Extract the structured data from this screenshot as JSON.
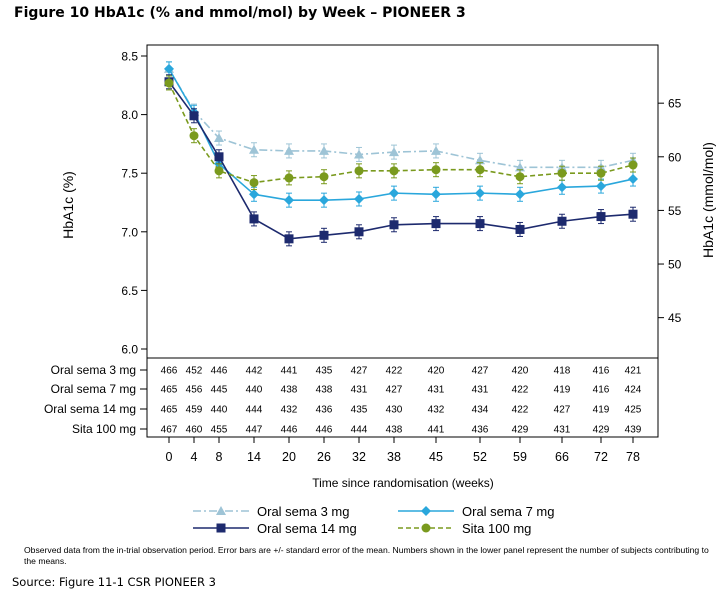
{
  "figure_title": "Figure 10 HbA1c (% and mmol/mol) by Week – PIONEER 3",
  "footnote": "Observed data from the in-trial observation period. Error bars are +/- standard error of the mean. Numbers shown in the lower panel represent the number of subjects contributing to the means.",
  "source": "Source: Figure 11-1 CSR PIONEER 3",
  "colors": {
    "oral_sema_3mg": "#9ec4d6",
    "oral_sema_7mg": "#2aa7dc",
    "oral_sema_14mg": "#1d2a6e",
    "sita_100mg": "#7a9a1e"
  },
  "chart_data": {
    "type": "line",
    "xlabel": "Time since randomisation (weeks)",
    "ylabel": "HbA1c (%)",
    "y2label": "HbA1c (mmol/mol)",
    "x": [
      0,
      4,
      8,
      14,
      20,
      26,
      32,
      38,
      45,
      52,
      59,
      66,
      72,
      78
    ],
    "ylim": [
      6.0,
      8.5
    ],
    "yticks": [
      "6.0",
      "6.5",
      "7.0",
      "7.5",
      "8.0",
      "8.5"
    ],
    "y2ticks": [
      "45",
      "50",
      "55",
      "60",
      "65"
    ],
    "grid": false,
    "legend_position": "bottom",
    "series": [
      {
        "name": "Oral sema 3 mg",
        "marker": "triangle",
        "line": "dash-dot",
        "values": [
          8.39,
          8.03,
          7.8,
          7.7,
          7.69,
          7.69,
          7.66,
          7.68,
          7.69,
          7.61,
          7.55,
          7.55,
          7.55,
          7.61
        ],
        "n": [
          "466",
          "452",
          "446",
          "442",
          "441",
          "435",
          "427",
          "422",
          "420",
          "427",
          "420",
          "418",
          "416",
          "421"
        ]
      },
      {
        "name": "Oral sema 7 mg",
        "marker": "diamond",
        "line": "solid",
        "values": [
          8.39,
          8.02,
          7.58,
          7.32,
          7.27,
          7.27,
          7.28,
          7.33,
          7.32,
          7.33,
          7.32,
          7.38,
          7.39,
          7.45
        ],
        "n": [
          "465",
          "456",
          "445",
          "440",
          "438",
          "438",
          "431",
          "427",
          "431",
          "431",
          "422",
          "419",
          "416",
          "424"
        ]
      },
      {
        "name": "Oral sema 14 mg",
        "marker": "square",
        "line": "solid",
        "values": [
          8.28,
          7.99,
          7.64,
          7.11,
          6.94,
          6.97,
          7.0,
          7.06,
          7.07,
          7.07,
          7.02,
          7.09,
          7.13,
          7.15
        ],
        "n": [
          "465",
          "459",
          "440",
          "444",
          "432",
          "436",
          "435",
          "430",
          "432",
          "434",
          "422",
          "427",
          "419",
          "425"
        ]
      },
      {
        "name": "Sita 100 mg",
        "marker": "circle",
        "line": "dash",
        "values": [
          8.27,
          7.82,
          7.52,
          7.42,
          7.46,
          7.47,
          7.52,
          7.52,
          7.53,
          7.53,
          7.47,
          7.5,
          7.5,
          7.57
        ],
        "n": [
          "467",
          "460",
          "455",
          "447",
          "446",
          "446",
          "444",
          "438",
          "441",
          "436",
          "429",
          "431",
          "429",
          "439"
        ]
      }
    ],
    "table_labels": [
      "Oral sema 3 mg",
      "Oral sema 7 mg",
      "Oral sema 14 mg",
      "Sita 100 mg"
    ]
  }
}
